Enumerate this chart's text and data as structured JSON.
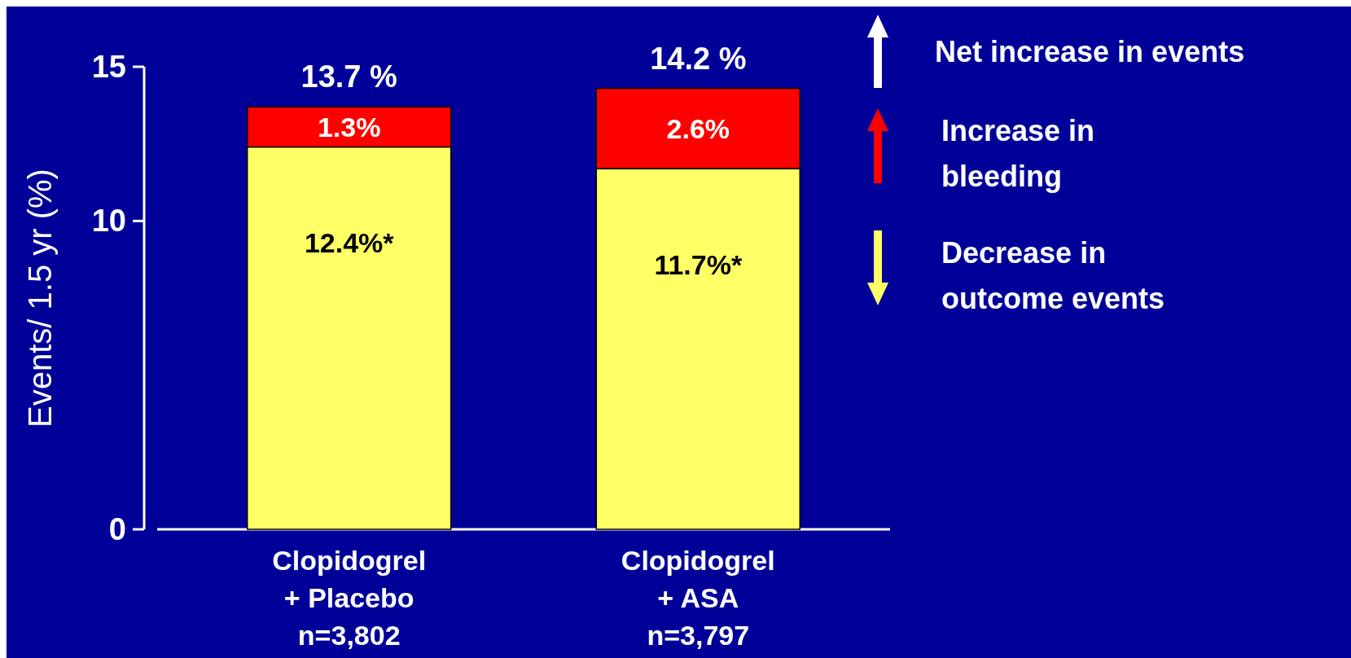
{
  "chart_data": {
    "type": "bar",
    "stacked": true,
    "ylabel": "Events/ 1.5 yr (%)",
    "categories": [
      "Clopidogrel\n+ Placebo\nn=3,802",
      "Clopidogrel\n+ ASA\nn=3,797"
    ],
    "series": [
      {
        "name": "Decrease in outcome events",
        "color": "#ffff66",
        "values": [
          12.4,
          11.7
        ],
        "value_labels": [
          "12.4%*",
          "11.7%*"
        ]
      },
      {
        "name": "Increase in bleeding",
        "color": "#ff0000",
        "values": [
          1.3,
          2.6
        ],
        "value_labels": [
          "1.3%",
          "2.6%"
        ]
      }
    ],
    "totals": [
      "13.7 %",
      "14.2 %"
    ],
    "annotations": [
      "Net increase in events"
    ],
    "ylim": [
      0,
      15
    ],
    "yticks": [
      0,
      10,
      15
    ],
    "legend": "right"
  }
}
